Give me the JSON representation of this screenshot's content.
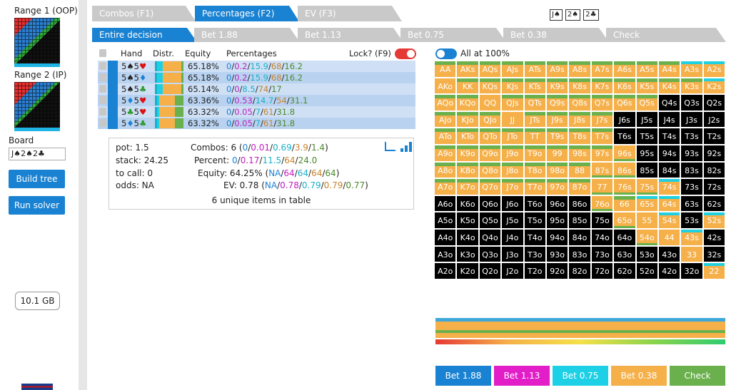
{
  "sidebar": {
    "range1_label": "Range 1 (OOP)",
    "range2_label": "Range 2 (IP)",
    "board_label": "Board",
    "board_value": "J♠2♠2♣",
    "build_tree": "Build tree",
    "run_solver": "Run solver",
    "memory": "10.1 GB"
  },
  "tabs": {
    "combos": "Combos (F1)",
    "percentages": "Percentages (F2)",
    "ev": "EV (F3)"
  },
  "board_cards": [
    "J♠",
    "2♠",
    "2♣"
  ],
  "actions_tabs": [
    "Entire decision",
    "Bet 1.88",
    "Bet 1.13",
    "Bet 0.75",
    "Bet 0.38",
    "Check"
  ],
  "table": {
    "header_hand": "Hand",
    "header_distr": "Distr.",
    "header_equity": "Equity",
    "header_percentages": "Percentages",
    "lock_label": "Lock? (F9)",
    "rows": [
      {
        "hand": "5♠5♥",
        "equity": "65.18%",
        "pct": [
          "0",
          "0.2",
          "15.9",
          "68",
          "16.2"
        ]
      },
      {
        "hand": "5♠5♦",
        "equity": "65.18%",
        "pct": [
          "0",
          "0.2",
          "15.9",
          "68",
          "16.2"
        ]
      },
      {
        "hand": "5♠5♣",
        "equity": "65.14%",
        "pct": [
          "0",
          "0",
          "8.5",
          "74",
          "17"
        ]
      },
      {
        "hand": "5♦5♥",
        "equity": "63.36%",
        "pct": [
          "0",
          "0.53",
          "14.7",
          "54",
          "31.1"
        ]
      },
      {
        "hand": "5♣5♥",
        "equity": "63.32%",
        "pct": [
          "0",
          "0.05",
          "7",
          "61",
          "31.8"
        ]
      },
      {
        "hand": "5♦5♣",
        "equity": "63.32%",
        "pct": [
          "0",
          "0.05",
          "7",
          "61",
          "31.8"
        ]
      }
    ]
  },
  "info": {
    "pot": "pot: 1.5",
    "stack": "stack: 24.25",
    "to_call": "to call: 0",
    "odds": "odds: NA",
    "combos_label": "Combos: 6 (",
    "combos_vals": [
      "0",
      "0.01",
      "0.69",
      "3.9",
      "1.4"
    ],
    "percent_label": "Percent: ",
    "percent_vals": [
      "0",
      "0.17",
      "11.5",
      "64",
      "24.0"
    ],
    "equity_label": "Equity: 64.25% (",
    "equity_vals": [
      "NA",
      "64",
      "64",
      "64",
      "64"
    ],
    "ev_label": "EV: 0.78 (",
    "ev_vals": [
      "NA",
      "0.78",
      "0.79",
      "0.79",
      "0.77"
    ],
    "unique": "6 unique items in table"
  },
  "all_at_100": "All at 100%",
  "matrix": [
    [
      "AA",
      "AKs",
      "AQs",
      "AJs",
      "ATs",
      "A9s",
      "A8s",
      "A7s",
      "A6s",
      "A5s",
      "A4s",
      "A3s",
      "A2s"
    ],
    [
      "AKo",
      "KK",
      "KQs",
      "KJs",
      "KTs",
      "K9s",
      "K8s",
      "K7s",
      "K6s",
      "K5s",
      "K4s",
      "K3s",
      "K2s"
    ],
    [
      "AQo",
      "KQo",
      "QQ",
      "QJs",
      "QTs",
      "Q9s",
      "Q8s",
      "Q7s",
      "Q6s",
      "Q5s",
      "Q4s",
      "Q3s",
      "Q2s"
    ],
    [
      "AJo",
      "KJo",
      "QJo",
      "JJ",
      "JTs",
      "J9s",
      "J8s",
      "J7s",
      "J6s",
      "J5s",
      "J4s",
      "J3s",
      "J2s"
    ],
    [
      "ATo",
      "KTo",
      "QTo",
      "JTo",
      "TT",
      "T9s",
      "T8s",
      "T7s",
      "T6s",
      "T5s",
      "T4s",
      "T3s",
      "T2s"
    ],
    [
      "A9o",
      "K9o",
      "Q9o",
      "J9o",
      "T9o",
      "99",
      "98s",
      "97s",
      "96s",
      "95s",
      "94s",
      "93s",
      "92s"
    ],
    [
      "A8o",
      "K8o",
      "Q8o",
      "J8o",
      "T8o",
      "98o",
      "88",
      "87s",
      "86s",
      "85s",
      "84s",
      "83s",
      "82s"
    ],
    [
      "A7o",
      "K7o",
      "Q7o",
      "J7o",
      "T7o",
      "97o",
      "87o",
      "77",
      "76s",
      "75s",
      "74s",
      "73s",
      "72s"
    ],
    [
      "A6o",
      "K6o",
      "Q6o",
      "J6o",
      "T6o",
      "96o",
      "86o",
      "76o",
      "66",
      "65s",
      "64s",
      "63s",
      "62s"
    ],
    [
      "A5o",
      "K5o",
      "Q5o",
      "J5o",
      "T5o",
      "95o",
      "85o",
      "75o",
      "65o",
      "55",
      "54s",
      "53s",
      "52s"
    ],
    [
      "A4o",
      "K4o",
      "Q4o",
      "J4o",
      "T4o",
      "94o",
      "84o",
      "74o",
      "64o",
      "54o",
      "44",
      "43s",
      "42s"
    ],
    [
      "A3o",
      "K3o",
      "Q3o",
      "J3o",
      "T3o",
      "93o",
      "83o",
      "73o",
      "63o",
      "53o",
      "43o",
      "33",
      "32s"
    ],
    [
      "A2o",
      "K2o",
      "Q2o",
      "J2o",
      "T2o",
      "92o",
      "82o",
      "72o",
      "62o",
      "52o",
      "42o",
      "32o",
      "22"
    ]
  ],
  "matrix_styles": [
    "mmmmmmmmmmmcc",
    "ommmmmmmmmmmc",
    "mmommmmmmmbbb",
    "mmmommmmbbbbb",
    "mmmmmmmmbbbbb",
    "mmmmmmmmgbbbb",
    "mmmmmmmggbbbb",
    "mmmmmmmgggcbb",
    "bbbbbbbgmccbb",
    "bbbbbbbbgocbc",
    "bbbbbbbbbgocb",
    "bbbbbbbbbbbob",
    "bbbbbbbbbbbbc"
  ],
  "action_buttons": [
    {
      "label": "Bet 1.88",
      "color": "#1a82d2"
    },
    {
      "label": "Bet 1.13",
      "color": "#e11ec8"
    },
    {
      "label": "Bet 0.75",
      "color": "#1ed0e6"
    },
    {
      "label": "Bet 0.38",
      "color": "#f5b04a"
    },
    {
      "label": "Check",
      "color": "#6ab04c"
    }
  ],
  "colors": {
    "pct_zero": "#1a82d2",
    "pct_bet188": "#c020c0",
    "pct_bet113": "#1ab0c8",
    "pct_bet075": "#c8832a",
    "pct_check": "#4a8a2a"
  }
}
